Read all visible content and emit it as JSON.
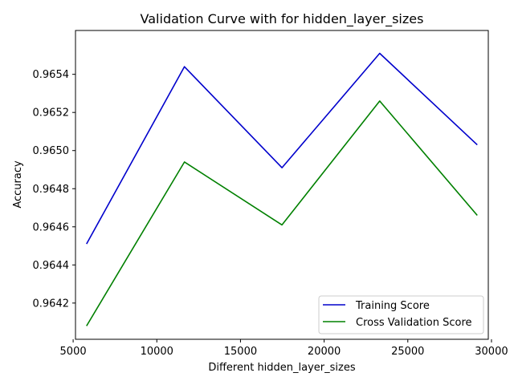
{
  "chart_data": {
    "type": "line",
    "title": "Validation Curve with for hidden_layer_sizes",
    "xlabel": "Different hidden_layer_sizes",
    "ylabel": "Accuracy",
    "x": [
      5800,
      11650,
      17480,
      23320,
      29150
    ],
    "xlim": [
      5140,
      29810
    ],
    "ylim": [
      0.96401,
      0.96563
    ],
    "xticks": [
      5000,
      10000,
      15000,
      20000,
      25000,
      30000
    ],
    "xtick_labels": [
      "5000",
      "10000",
      "15000",
      "20000",
      "25000",
      "30000"
    ],
    "yticks": [
      0.9642,
      0.9644,
      0.9646,
      0.9648,
      0.965,
      0.9652,
      0.9654
    ],
    "ytick_labels": [
      "0.9642",
      "0.9644",
      "0.9646",
      "0.9648",
      "0.9650",
      "0.9652",
      "0.9654"
    ],
    "grid": false,
    "legend_position": "lower-right",
    "series": [
      {
        "name": "Training Score",
        "color": "#0000cc",
        "values": [
          0.96451,
          0.96544,
          0.96491,
          0.96551,
          0.96503
        ]
      },
      {
        "name": "Cross Validation Score",
        "color": "#008000",
        "values": [
          0.96408,
          0.96494,
          0.96461,
          0.96526,
          0.96466
        ]
      }
    ]
  }
}
